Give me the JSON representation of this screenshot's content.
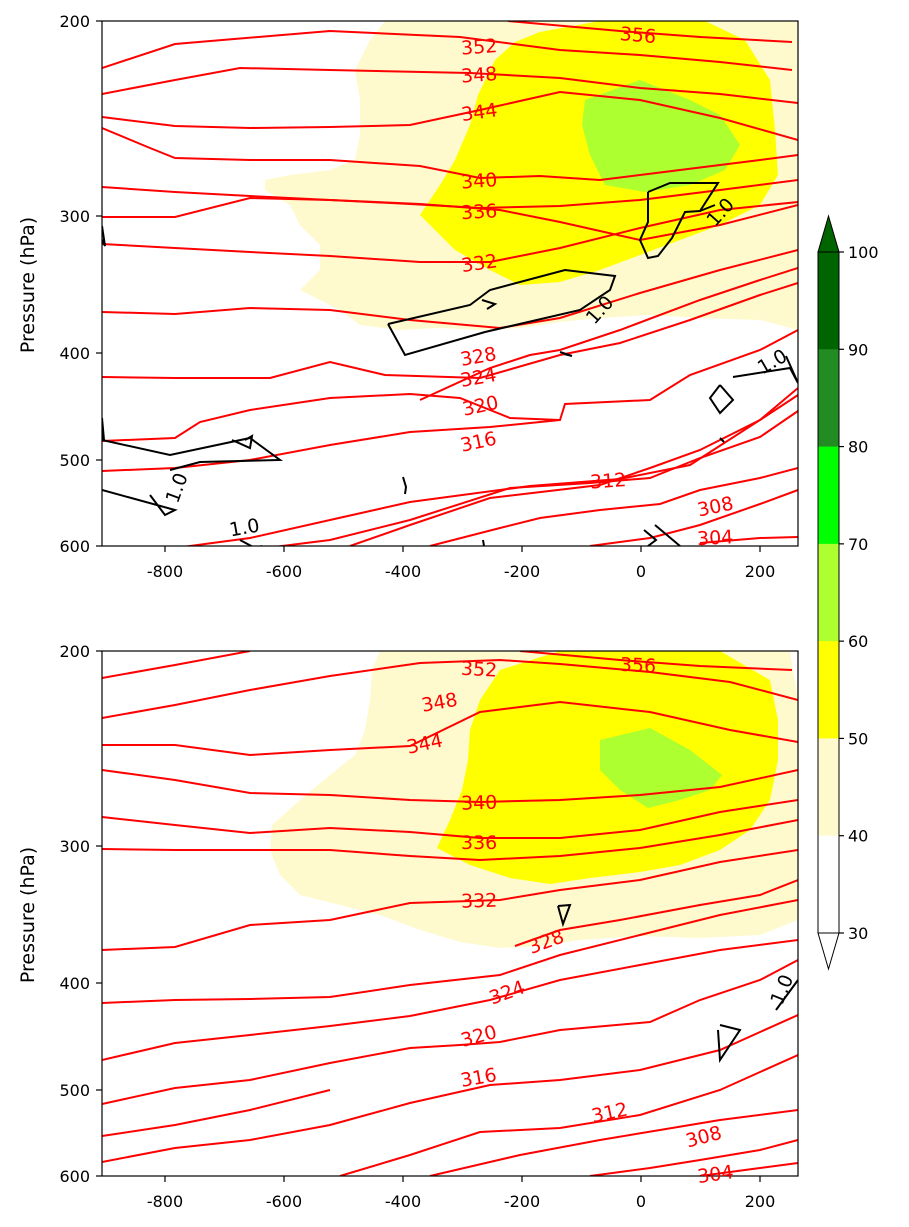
{
  "chart_data": {
    "type": "contour",
    "panels": [
      {
        "ylabel": "Pressure (hPa)",
        "xlim": [
          -910,
          260
        ],
        "ylim": [
          600,
          200
        ],
        "yscale": "log",
        "x_ticks": [
          -800,
          -600,
          -400,
          -200,
          0,
          200
        ],
        "y_ticks": [
          200,
          300,
          400,
          500,
          600
        ],
        "filled_regions": [
          {
            "level": "40-50",
            "color": "#fffacd"
          },
          {
            "level": "50-60",
            "color": "#ffff00"
          },
          {
            "level": "60-70",
            "color": "#adff2f"
          }
        ],
        "theta_contour_labels": [
          {
            "label": "356",
            "x": -5,
            "y": 208
          },
          {
            "label": "352",
            "x": -260,
            "y": 220
          },
          {
            "label": "348",
            "x": -260,
            "y": 236
          },
          {
            "label": "344",
            "x": -260,
            "y": 255
          },
          {
            "label": "340",
            "x": -260,
            "y": 283
          },
          {
            "label": "336",
            "x": -260,
            "y": 298
          },
          {
            "label": "332",
            "x": -260,
            "y": 336
          },
          {
            "label": "328",
            "x": -260,
            "y": 395
          },
          {
            "label": "324",
            "x": -260,
            "y": 415
          },
          {
            "label": "320",
            "x": -260,
            "y": 445
          },
          {
            "label": "316",
            "x": -260,
            "y": 483
          },
          {
            "label": "312",
            "x": -50,
            "y": 530
          },
          {
            "label": "308",
            "x": 130,
            "y": 565
          },
          {
            "label": "304",
            "x": 130,
            "y": 595
          }
        ],
        "black_contour_labels": [
          {
            "label": "1.0",
            "x": 125,
            "y": 302
          },
          {
            "label": "1.0",
            "x": -70,
            "y": 368
          },
          {
            "label": "1.0",
            "x": 220,
            "y": 405
          },
          {
            "label": "1.0",
            "x": -790,
            "y": 525
          },
          {
            "label": "1.0",
            "x": -680,
            "y": 572
          }
        ]
      },
      {
        "ylabel": "Pressure (hPa)",
        "xlim": [
          -910,
          260
        ],
        "ylim": [
          600,
          200
        ],
        "yscale": "log",
        "x_ticks": [
          -800,
          -600,
          -400,
          -200,
          0,
          200
        ],
        "y_ticks": [
          200,
          300,
          400,
          500,
          600
        ],
        "filled_regions": [
          {
            "level": "40-50",
            "color": "#fffacd"
          },
          {
            "level": "50-60",
            "color": "#ffff00"
          },
          {
            "level": "60-70",
            "color": "#adff2f"
          }
        ],
        "theta_contour_labels": [
          {
            "label": "356",
            "x": -5,
            "y": 205
          },
          {
            "label": "352",
            "x": -260,
            "y": 206
          },
          {
            "label": "348",
            "x": -350,
            "y": 225
          },
          {
            "label": "344",
            "x": -350,
            "y": 248
          },
          {
            "label": "340",
            "x": -260,
            "y": 280
          },
          {
            "label": "336",
            "x": -260,
            "y": 298
          },
          {
            "label": "332",
            "x": -260,
            "y": 343
          },
          {
            "label": "328",
            "x": -150,
            "y": 368
          },
          {
            "label": "324",
            "x": -220,
            "y": 407
          },
          {
            "label": "320",
            "x": -260,
            "y": 447
          },
          {
            "label": "316",
            "x": -260,
            "y": 493
          },
          {
            "label": "312",
            "x": -45,
            "y": 530
          },
          {
            "label": "308",
            "x": 115,
            "y": 565
          },
          {
            "label": "304",
            "x": 130,
            "y": 595
          }
        ],
        "black_contour_labels": [
          {
            "label": "1.0",
            "x": 230,
            "y": 410
          }
        ]
      }
    ],
    "colorbar": {
      "levels": [
        30,
        40,
        50,
        60,
        70,
        80,
        90,
        100
      ],
      "colors": [
        "#ffffff",
        "#fffacd",
        "#ffff00",
        "#adff2f",
        "#00ff00",
        "#228b22",
        "#006400"
      ],
      "extend_max_color": "#006400",
      "extend_min_color": "#ffffff"
    }
  }
}
